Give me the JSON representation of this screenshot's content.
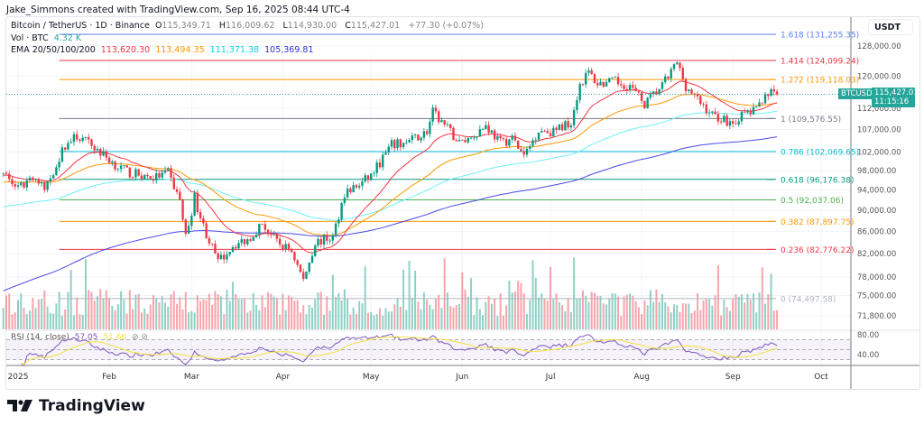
{
  "caption": "Jake_Simmons created with TradingView.com, Sep 16, 2025 08:44 UTC-4",
  "legend": {
    "symbol": "Bitcoin / TetherUS · 1D · Binance",
    "o_label": "O",
    "o": "115,349.71",
    "h_label": "H",
    "h": "116,009.62",
    "l_label": "L",
    "l": "114,930.00",
    "c_label": "C",
    "c": "115,427.01",
    "change": "+77.30 (+0.07%)",
    "vol_label": "Vol · BTC",
    "vol": "4.32 K",
    "ema_label": "EMA 20/50/100/200",
    "ema_values": [
      "113,620.30",
      "113,494.35",
      "111,371.38",
      "105,369.81"
    ]
  },
  "rsi": {
    "label": "RSI (14, close)",
    "value": "57.05",
    "ma": "51.66",
    "ticks": [
      "80.00",
      "40.00"
    ]
  },
  "price_axis": {
    "currency": "USDT",
    "ticks": [
      "128,000.00",
      "120,000.00",
      "112,000.00",
      "107,000.00",
      "102,000.00",
      "98,000.00",
      "94,000.00",
      "90,000.00",
      "86,000.00",
      "82,000.00",
      "78,000.00",
      "75,000.00",
      "71,800.00"
    ]
  },
  "last_price": {
    "symbol": "BTCUSDT",
    "price": "115,427.01",
    "countdown": "11:15:16"
  },
  "time_axis": [
    {
      "label": "2025",
      "date": "2025-01-01"
    },
    {
      "label": "Feb",
      "date": "2025-02-01"
    },
    {
      "label": "Mar",
      "date": "2025-03-01"
    },
    {
      "label": "Apr",
      "date": "2025-04-01"
    },
    {
      "label": "May",
      "date": "2025-05-01"
    },
    {
      "label": "Jun",
      "date": "2025-06-01"
    },
    {
      "label": "Jul",
      "date": "2025-07-01"
    },
    {
      "label": "Aug",
      "date": "2025-08-01"
    },
    {
      "label": "Sep",
      "date": "2025-09-01"
    },
    {
      "label": "Oct",
      "date": "2025-10-01"
    }
  ],
  "fib_levels": [
    {
      "label": "1.618 (131,255.35)",
      "price": 131255.35,
      "color": "#5b7ff5"
    },
    {
      "label": "1.414 (124,099.24)",
      "price": 124099.24,
      "color": "#f23645"
    },
    {
      "label": "1.272 (119,118.03)",
      "price": 119118.03,
      "color": "#ff9800"
    },
    {
      "label": "1 (109,576.55)",
      "price": 109576.55,
      "color": "#787b86"
    },
    {
      "label": "0.786 (102,069.65)",
      "price": 102069.65,
      "color": "#00bcd4"
    },
    {
      "label": "0.618 (96,176.38)",
      "price": 96176.38,
      "color": "#089981"
    },
    {
      "label": "0.5 (92,037.06)",
      "price": 92037.06,
      "color": "#4caf50"
    },
    {
      "label": "0.382 (87,897.75)",
      "price": 87897.75,
      "color": "#ff9800"
    },
    {
      "label": "0.236 (82,776.22)",
      "price": 82776.22,
      "color": "#f23645"
    },
    {
      "label": "0 (74,497.58)",
      "price": 74497.58,
      "color": "#b2b5be"
    }
  ],
  "colors": {
    "up": "#089981",
    "down": "#f23645",
    "ema20": "#f23645",
    "ema50": "#ff9800",
    "ema100": "#6ff0f5",
    "ema200": "#4a4ae8",
    "rsi": "#7e57c2",
    "rsi_ma": "#f5e23a"
  },
  "chart_data": {
    "type": "candlestick",
    "symbol": "BTCUSDT",
    "interval": "1D",
    "y_scale": "log",
    "ylim": [
      71800,
      128000
    ],
    "xlim": [
      "2024-12-27",
      "2025-10-03"
    ],
    "grid": true,
    "approx_closes": [
      [
        "2024-12-27",
        97500
      ],
      [
        "2025-01-01",
        94100
      ],
      [
        "2025-01-06",
        97000
      ],
      [
        "2025-01-10",
        94000
      ],
      [
        "2025-01-17",
        103500
      ],
      [
        "2025-01-21",
        105500
      ],
      [
        "2025-01-26",
        103500
      ],
      [
        "2025-01-31",
        100800
      ],
      [
        "2025-02-04",
        98800
      ],
      [
        "2025-02-08",
        97500
      ],
      [
        "2025-02-16",
        96500
      ],
      [
        "2025-02-21",
        97500
      ],
      [
        "2025-02-25",
        92000
      ],
      [
        "2025-02-27",
        85000
      ],
      [
        "2025-03-02",
        92500
      ],
      [
        "2025-03-05",
        87000
      ],
      [
        "2025-03-10",
        80500
      ],
      [
        "2025-03-15",
        83500
      ],
      [
        "2025-03-20",
        84500
      ],
      [
        "2025-03-25",
        87500
      ],
      [
        "2025-03-30",
        84000
      ],
      [
        "2025-04-04",
        82500
      ],
      [
        "2025-04-08",
        77500
      ],
      [
        "2025-04-12",
        84000
      ],
      [
        "2025-04-18",
        85000
      ],
      [
        "2025-04-22",
        93500
      ],
      [
        "2025-04-27",
        95000
      ],
      [
        "2025-05-01",
        97000
      ],
      [
        "2025-05-08",
        103500
      ],
      [
        "2025-05-13",
        104000
      ],
      [
        "2025-05-20",
        106500
      ],
      [
        "2025-05-22",
        111000
      ],
      [
        "2025-05-26",
        108000
      ],
      [
        "2025-05-31",
        104000
      ],
      [
        "2025-06-04",
        105300
      ],
      [
        "2025-06-09",
        108000
      ],
      [
        "2025-06-14",
        104000
      ],
      [
        "2025-06-18",
        105000
      ],
      [
        "2025-06-22",
        101000
      ],
      [
        "2025-06-27",
        107000
      ],
      [
        "2025-07-02",
        106500
      ],
      [
        "2025-07-08",
        109000
      ],
      [
        "2025-07-11",
        118000
      ],
      [
        "2025-07-14",
        121000
      ],
      [
        "2025-07-17",
        118000
      ],
      [
        "2025-07-23",
        118500
      ],
      [
        "2025-07-28",
        117500
      ],
      [
        "2025-08-02",
        113000
      ],
      [
        "2025-08-08",
        117500
      ],
      [
        "2025-08-13",
        123500
      ],
      [
        "2025-08-16",
        117500
      ],
      [
        "2025-08-20",
        114000
      ],
      [
        "2025-08-25",
        110500
      ],
      [
        "2025-09-01",
        108500
      ],
      [
        "2025-09-05",
        110800
      ],
      [
        "2025-09-09",
        111500
      ],
      [
        "2025-09-12",
        115800
      ],
      [
        "2025-09-16",
        115427
      ]
    ],
    "ema_start": {
      "ema20": 97000,
      "ema50": 95500,
      "ema100": 90500,
      "ema200": 75500
    }
  },
  "brand": "TradingView"
}
